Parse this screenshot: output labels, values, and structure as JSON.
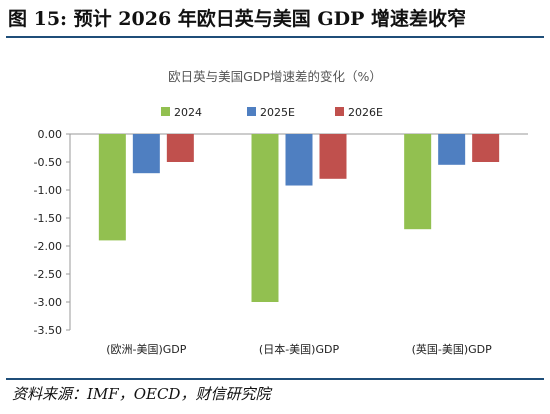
{
  "figure_title": "图 15:  预计 2026 年欧日英与美国 GDP 增速差收窄",
  "source_note": "资料来源：IMF，OECD，财信研究院",
  "colors": {
    "s2024": "#92c050",
    "s2025E": "#4f7fc1",
    "s2026E": "#c0504d",
    "rule": "#1f4e79"
  },
  "chart_data": {
    "type": "bar",
    "title": "欧日英与美国GDP增速差的变化（%）",
    "categories": [
      "(欧洲-美国)GDP",
      "(日本-美国)GDP",
      "(英国-美国)GDP"
    ],
    "series": [
      {
        "name": "2024",
        "values": [
          -1.9,
          -3.0,
          -1.7
        ]
      },
      {
        "name": "2025E",
        "values": [
          -0.7,
          -0.92,
          -0.55
        ]
      },
      {
        "name": "2026E",
        "values": [
          -0.5,
          -0.8,
          -0.5
        ]
      }
    ],
    "ylim": [
      -3.5,
      0
    ],
    "yticks": [
      "0.00",
      "-0.50",
      "-1.00",
      "-1.50",
      "-2.00",
      "-2.50",
      "-3.00",
      "-3.50"
    ],
    "grid": false,
    "legend": "top-center"
  }
}
